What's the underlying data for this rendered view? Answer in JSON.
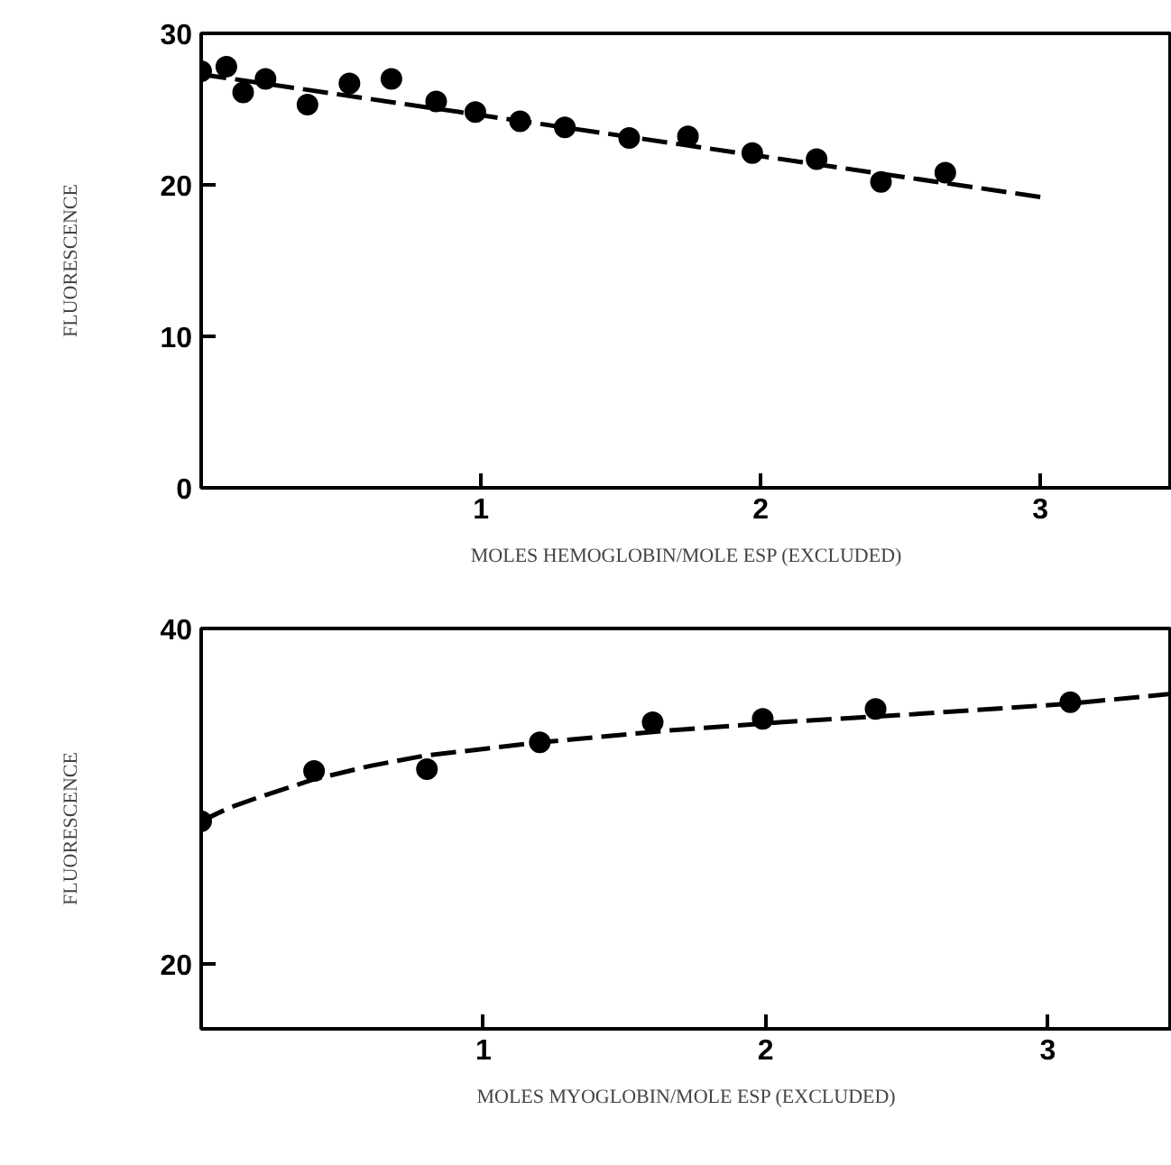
{
  "chart_data": [
    {
      "type": "scatter",
      "xlabel": "MOLES HEMOGLOBIN/MOLE ESP (EXCLUDED)",
      "ylabel": "FLUORESCENCE",
      "xlim": [
        0,
        3.47
      ],
      "ylim": [
        0,
        30
      ],
      "xticks": [
        1,
        2,
        3
      ],
      "yticks": [
        0,
        10,
        20,
        30
      ],
      "grid": false,
      "series": [
        {
          "marker": "circle",
          "color": "#000000",
          "x": [
            0.0,
            0.09,
            0.15,
            0.23,
            0.38,
            0.53,
            0.68,
            0.84,
            0.98,
            1.14,
            1.3,
            1.53,
            1.74,
            1.97,
            2.2,
            2.43,
            2.66
          ],
          "values": [
            27.5,
            27.8,
            26.1,
            27.0,
            25.3,
            26.7,
            27.0,
            25.5,
            24.8,
            24.2,
            23.8,
            23.1,
            23.2,
            22.1,
            21.7,
            20.2,
            20.8
          ]
        },
        {
          "type": "line",
          "marker": "none",
          "line_style": "dashed",
          "color": "#000000",
          "x": [
            0,
            3
          ],
          "values": [
            27.3,
            19.2
          ]
        }
      ]
    },
    {
      "type": "scatter",
      "xlabel": "MOLES MYOGLOBIN/MOLE ESP (EXCLUDED)",
      "ylabel": "FLUORESCENCE",
      "xlim": [
        0,
        3.44
      ],
      "ylim": [
        16.1,
        40
      ],
      "xticks": [
        1,
        2,
        3
      ],
      "yticks": [
        20,
        40
      ],
      "grid": false,
      "series": [
        {
          "marker": "circle",
          "color": "#000000",
          "x": [
            0,
            0.4,
            0.8,
            1.2,
            1.6,
            1.99,
            2.39,
            3.08
          ],
          "values": [
            28.5,
            31.5,
            31.6,
            33.2,
            34.4,
            34.6,
            35.2,
            35.6
          ]
        },
        {
          "type": "line",
          "marker": "none",
          "line_style": "dashed",
          "color": "#000000",
          "x": [
            0,
            0.1,
            0.2,
            0.4,
            0.6,
            0.79,
            1.2,
            1.65,
            2.05,
            2.45,
            3.07,
            3.44
          ],
          "values": [
            28.5,
            29.3,
            29.9,
            31.0,
            31.8,
            32.4,
            33.2,
            33.9,
            34.4,
            34.8,
            35.5,
            36.1
          ]
        }
      ]
    }
  ]
}
